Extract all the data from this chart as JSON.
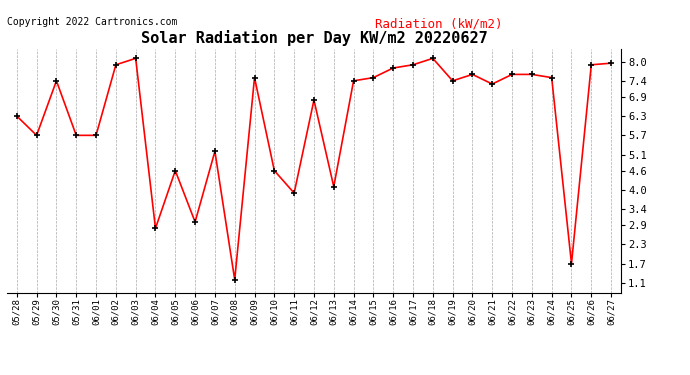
{
  "title": "Solar Radiation per Day KW/m2 20220627",
  "copyright": "Copyright 2022 Cartronics.com",
  "legend_label": "Radiation (kW/m2)",
  "dates": [
    "05/28",
    "05/29",
    "05/30",
    "05/31",
    "06/01",
    "06/02",
    "06/03",
    "06/04",
    "06/05",
    "06/06",
    "06/07",
    "06/08",
    "06/09",
    "06/10",
    "06/11",
    "06/12",
    "06/13",
    "06/14",
    "06/15",
    "06/16",
    "06/17",
    "06/18",
    "06/19",
    "06/20",
    "06/21",
    "06/22",
    "06/23",
    "06/24",
    "06/25",
    "06/26",
    "06/27"
  ],
  "values": [
    6.3,
    5.7,
    7.4,
    5.7,
    5.7,
    7.9,
    8.1,
    2.8,
    4.6,
    3.0,
    5.2,
    1.2,
    7.5,
    4.6,
    3.9,
    6.8,
    4.1,
    7.4,
    7.5,
    7.8,
    7.9,
    8.1,
    7.4,
    7.6,
    7.3,
    7.6,
    7.6,
    7.5,
    1.7,
    7.9,
    7.95
  ],
  "line_color": "red",
  "marker_color": "black",
  "marker_style": "+",
  "marker_size": 5,
  "marker_linewidth": 1.2,
  "line_width": 1.2,
  "background_color": "white",
  "grid_color": "#aaaaaa",
  "yticks": [
    1.1,
    1.7,
    2.3,
    2.9,
    3.4,
    4.0,
    4.6,
    5.1,
    5.7,
    6.3,
    6.9,
    7.4,
    8.0
  ],
  "ylim": [
    0.8,
    8.4
  ],
  "title_fontsize": 11,
  "copyright_fontsize": 7,
  "legend_fontsize": 9,
  "xtick_fontsize": 6.5,
  "ytick_fontsize": 7.5
}
